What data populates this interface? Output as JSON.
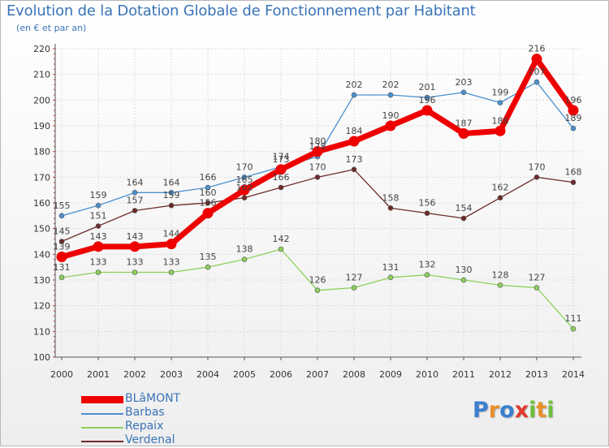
{
  "title": "Evolution de la Dotation Globale de Fonctionnement par Habitant",
  "subtitle": "(en € et par an)",
  "logo": {
    "letters": [
      "P",
      "r",
      "o",
      "x",
      "i",
      "t",
      "i"
    ],
    "colors": [
      "#3a7fd0",
      "#e8902a",
      "#3a7fd0",
      "#e23a2a",
      "#6fbe3a",
      "#e8902a",
      "#6fbe3a"
    ]
  },
  "chart_data": {
    "type": "line",
    "x": [
      "2000",
      "2001",
      "2002",
      "2003",
      "2004",
      "2005",
      "2006",
      "2007",
      "2008",
      "2009",
      "2010",
      "2011",
      "2012",
      "2013",
      "2014"
    ],
    "ylim": [
      100,
      220
    ],
    "yticks": [
      "100",
      "110",
      "120",
      "130",
      "140",
      "150",
      "160",
      "170",
      "180",
      "190",
      "200",
      "210",
      "220"
    ],
    "grid": true,
    "legend_position": "bottom-left",
    "series": [
      {
        "name": "Barbas",
        "color": "#4a90d0",
        "values": [
          155,
          159,
          164,
          164,
          166,
          170,
          174,
          178,
          202,
          202,
          201,
          203,
          199,
          207,
          189
        ],
        "labels": [
          "155",
          "159",
          "164",
          "164",
          "166",
          "170",
          "174",
          "178",
          "202",
          "202",
          "201",
          "203",
          "199",
          "207",
          "189"
        ]
      },
      {
        "name": "Repaix",
        "color": "#8cd05a",
        "values": [
          131,
          133,
          133,
          133,
          135,
          138,
          142,
          126,
          127,
          131,
          132,
          130,
          128,
          127,
          111
        ],
        "labels": [
          "131",
          "133",
          "133",
          "133",
          "135",
          "138",
          "142",
          "126",
          "127",
          "131",
          "132",
          "130",
          "128",
          "127",
          "111"
        ]
      },
      {
        "name": "Verdenal",
        "color": "#6e2a2a",
        "values": [
          145,
          151,
          157,
          159,
          160,
          162,
          166,
          170,
          173,
          158,
          156,
          154,
          162,
          170,
          168
        ],
        "labels": [
          "145",
          "151",
          "157",
          "159",
          "160",
          "162",
          "166",
          "170",
          "173",
          "158",
          "156",
          "154",
          "162",
          "170",
          "168"
        ]
      },
      {
        "name": "BLâMONT",
        "color": "#ee0000",
        "values": [
          139,
          143,
          143,
          144,
          156,
          165,
          173,
          180,
          184,
          190,
          196,
          187,
          188,
          216,
          196
        ],
        "labels": [
          "139",
          "143",
          "143",
          "144",
          "156",
          "165",
          "173",
          "180",
          "184",
          "190",
          "196",
          "187",
          "188",
          "216",
          "196"
        ]
      }
    ],
    "legend_order": [
      "BLâMONT",
      "Barbas",
      "Repaix",
      "Verdenal"
    ]
  }
}
